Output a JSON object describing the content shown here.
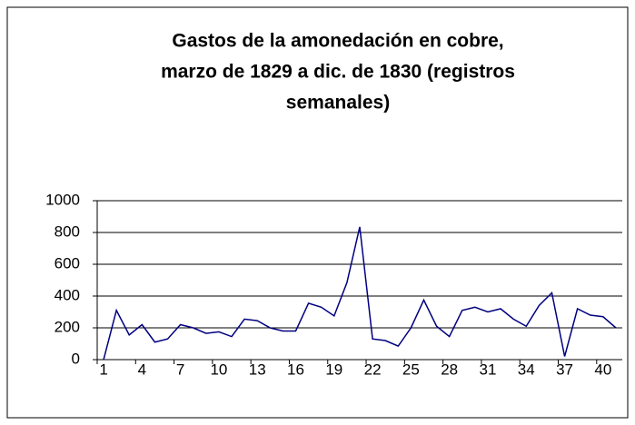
{
  "chart_data": {
    "type": "line",
    "title": [
      "Gastos de la amonedación en cobre,",
      "marzo de 1829 a dic. de 1830 (registros",
      "semanales)"
    ],
    "categories": [
      1,
      null,
      null,
      4,
      null,
      null,
      7,
      null,
      null,
      10,
      null,
      null,
      13,
      null,
      null,
      16,
      null,
      null,
      19,
      null,
      null,
      22,
      null,
      null,
      25,
      null,
      null,
      28,
      null,
      null,
      31,
      null,
      null,
      34,
      null,
      null,
      37,
      null,
      null,
      40,
      null
    ],
    "series": [
      {
        "color": "#000080",
        "values": [
          0,
          310,
          155,
          220,
          110,
          130,
          220,
          200,
          165,
          175,
          145,
          255,
          245,
          200,
          180,
          180,
          355,
          330,
          275,
          485,
          835,
          130,
          120,
          85,
          200,
          375,
          210,
          145,
          310,
          330,
          300,
          320,
          255,
          210,
          340,
          420,
          20,
          320,
          280,
          270,
          200
        ]
      }
    ],
    "ylim": [
      0,
      1000
    ],
    "yticks": [
      0,
      200,
      400,
      600,
      800,
      1000
    ],
    "grid": true
  }
}
